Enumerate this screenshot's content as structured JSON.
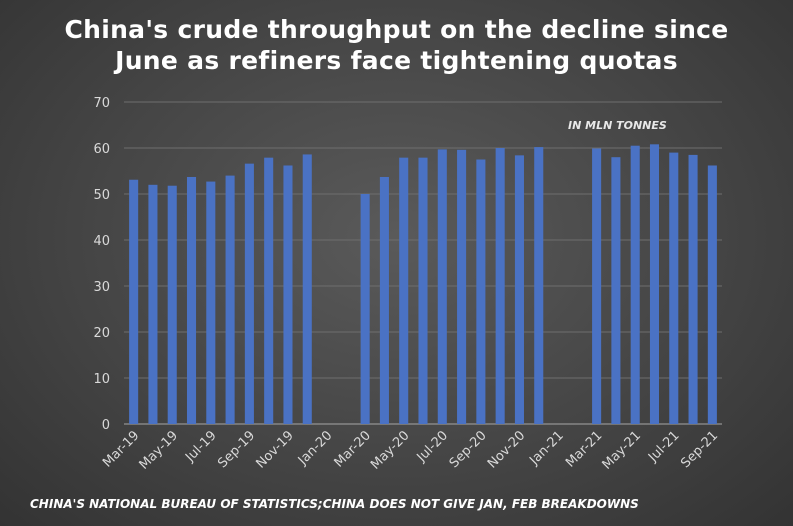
{
  "chart_data": {
    "type": "bar",
    "title_lines": [
      "China's crude throughput on the decline since",
      "June as refiners face tightening quotas"
    ],
    "annotation": "IN MLN TONNES",
    "source": "CHINA'S NATIONAL BUREAU OF STATISTICS;CHINA DOES NOT GIVE JAN, FEB BREAKDOWNS",
    "ylim": [
      0,
      70
    ],
    "yticks": [
      0,
      10,
      20,
      30,
      40,
      50,
      60,
      70
    ],
    "grid": true,
    "bar_color": "#4a72c4",
    "categories": [
      "Mar-19",
      "Apr-19",
      "May-19",
      "Jun-19",
      "Jul-19",
      "Aug-19",
      "Sep-19",
      "Oct-19",
      "Nov-19",
      "Dec-19",
      "Jan-20",
      "Feb-20",
      "Mar-20",
      "Apr-20",
      "May-20",
      "Jun-20",
      "Jul-20",
      "Aug-20",
      "Sep-20",
      "Oct-20",
      "Nov-20",
      "Dec-20",
      "Jan-21",
      "Feb-21",
      "Mar-21",
      "Apr-21",
      "May-21",
      "Jun-21",
      "Jul-21",
      "Aug-21",
      "Sep-21"
    ],
    "values": [
      53.1,
      52.0,
      51.8,
      53.7,
      52.7,
      54.0,
      56.6,
      57.9,
      56.2,
      58.6,
      null,
      null,
      50.0,
      53.7,
      57.9,
      57.9,
      59.7,
      59.6,
      57.5,
      60.0,
      58.4,
      60.2,
      null,
      null,
      59.9,
      58.0,
      60.5,
      60.8,
      59.0,
      58.5,
      56.2
    ],
    "xtick_labels": [
      "Mar-19",
      "May-19",
      "Jul-19",
      "Sep-19",
      "Nov-19",
      "Jan-20",
      "Mar-20",
      "May-20",
      "Jul-20",
      "Sep-20",
      "Nov-20",
      "Jan-21",
      "Mar-21",
      "May-21",
      "Jul-21",
      "Sep-21"
    ]
  }
}
